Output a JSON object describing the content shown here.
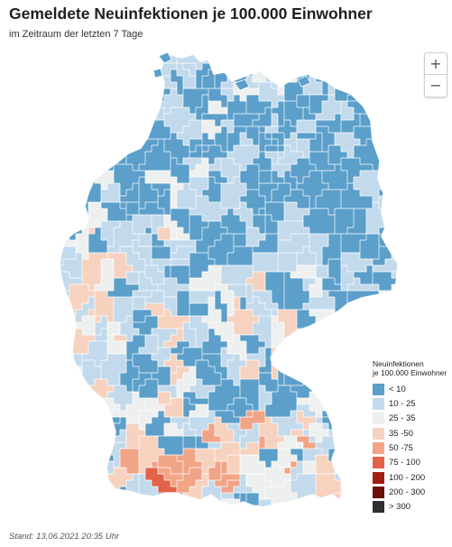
{
  "title": "Gemeldete Neuinfektionen je 100.000 Einwohner",
  "subtitle": "im Zeitraum der letzten 7 Tage",
  "zoom": {
    "in_label": "+",
    "out_label": "−"
  },
  "legend": {
    "title_line1": "Neuinfektionen",
    "title_line2": "je 100.000 Einwohner",
    "items": [
      {
        "label": "< 10",
        "color": "#5b9fca"
      },
      {
        "label": "10 - 25",
        "color": "#c3daec"
      },
      {
        "label": "25 - 35",
        "color": "#edf0ee"
      },
      {
        "label": "35 -50",
        "color": "#f6d2bf"
      },
      {
        "label": "50 -75",
        "color": "#f2a487"
      },
      {
        "label": "75 - 100",
        "color": "#e2634a"
      },
      {
        "label": "100 - 200",
        "color": "#a31b12"
      },
      {
        "label": "200 - 300",
        "color": "#6b0f08"
      },
      {
        "label": "> 300",
        "color": "#2f2f2f"
      }
    ]
  },
  "footer": "Stand: 13.06.2021 20:35 Uhr",
  "colors": {
    "border": "#ffffff"
  }
}
